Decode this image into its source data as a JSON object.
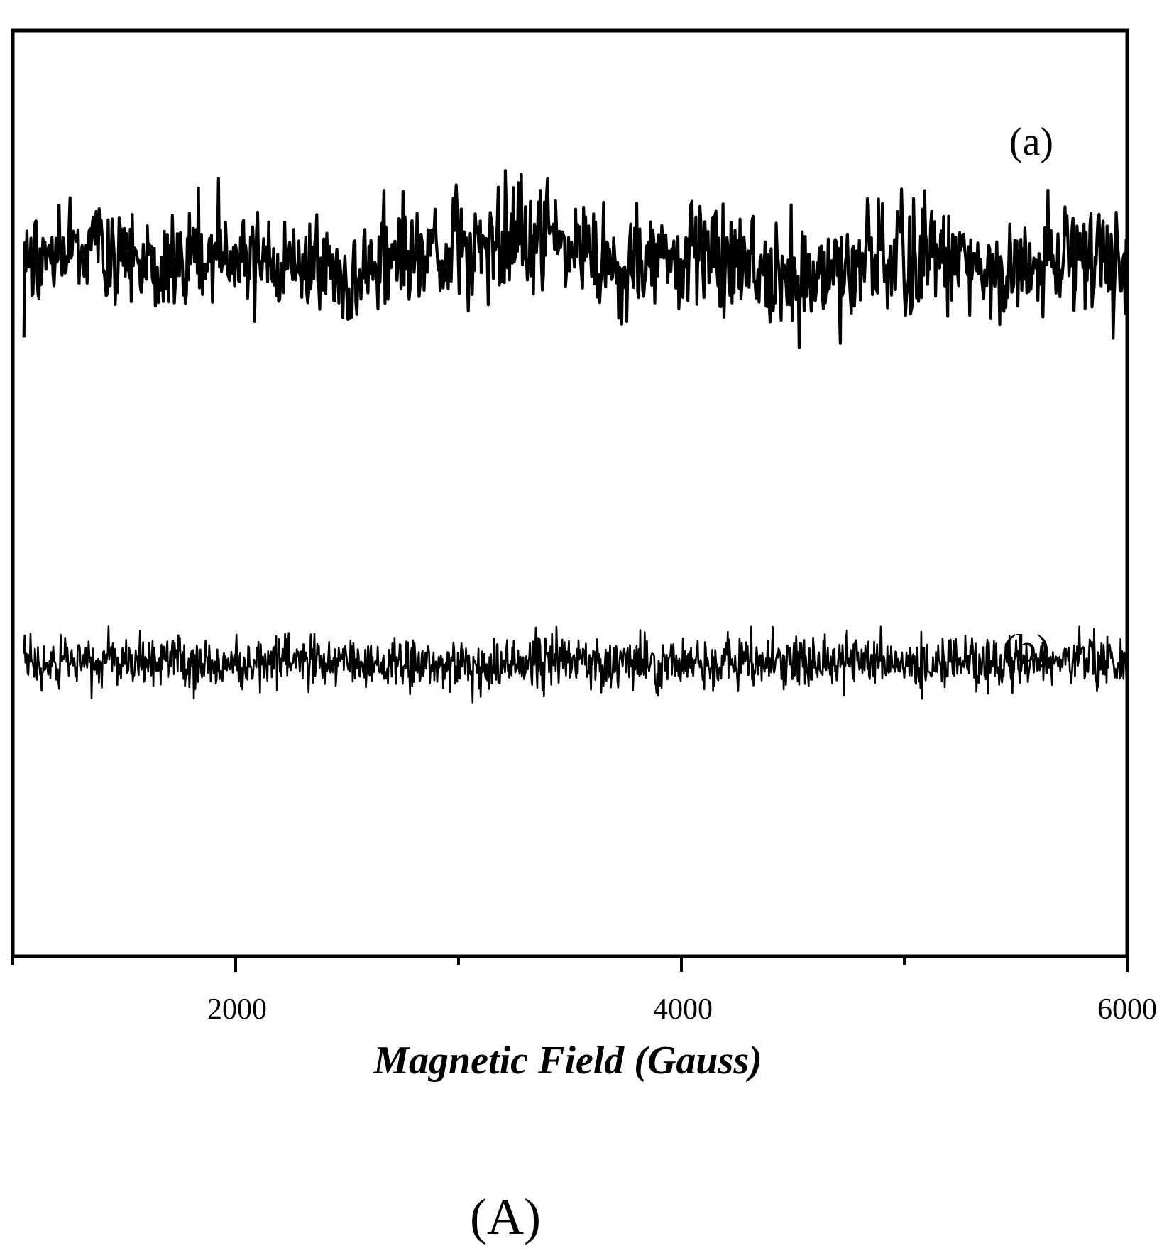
{
  "chart_data": {
    "type": "line",
    "xlabel": "Magnetic Field (Gauss)",
    "ylabel": "",
    "xlim": [
      1000,
      6000
    ],
    "xticks": [
      2000,
      4000,
      6000
    ],
    "xtick_labels": [
      "2000",
      "4000",
      "6000"
    ],
    "minor_xticks": [
      1000,
      3000,
      5000
    ],
    "grid": false,
    "legend": "none",
    "panel_label": "(A)",
    "series": [
      {
        "label": "(a)",
        "style": "noisy baseline, larger amplitude, upper trace",
        "noise": "large",
        "values": [
          {
            "x": 1050,
            "y": 0.0
          },
          {
            "x": 1300,
            "y": 0.1
          },
          {
            "x": 1600,
            "y": -0.05
          },
          {
            "x": 1900,
            "y": 0.05
          },
          {
            "x": 2200,
            "y": 0.0
          },
          {
            "x": 2500,
            "y": -0.1
          },
          {
            "x": 2800,
            "y": 0.05
          },
          {
            "x": 3100,
            "y": 0.1
          },
          {
            "x": 3400,
            "y": 0.2
          },
          {
            "x": 3600,
            "y": -0.05
          },
          {
            "x": 3900,
            "y": 0.0
          },
          {
            "x": 4200,
            "y": 0.05
          },
          {
            "x": 4500,
            "y": -0.1
          },
          {
            "x": 4800,
            "y": 0.0
          },
          {
            "x": 5100,
            "y": 0.05
          },
          {
            "x": 5400,
            "y": -0.05
          },
          {
            "x": 5700,
            "y": 0.0
          },
          {
            "x": 6000,
            "y": 0.0
          }
        ]
      },
      {
        "label": "(b)",
        "style": "noisy baseline, smaller amplitude, lower trace",
        "noise": "small",
        "values": [
          {
            "x": 1050,
            "y": 0.0
          },
          {
            "x": 1300,
            "y": 0.0
          },
          {
            "x": 1600,
            "y": 0.02
          },
          {
            "x": 1900,
            "y": 0.0
          },
          {
            "x": 2200,
            "y": 0.02
          },
          {
            "x": 2500,
            "y": 0.0
          },
          {
            "x": 2800,
            "y": 0.01
          },
          {
            "x": 3100,
            "y": -0.02
          },
          {
            "x": 3400,
            "y": 0.02
          },
          {
            "x": 3600,
            "y": 0.0
          },
          {
            "x": 3900,
            "y": -0.01
          },
          {
            "x": 4200,
            "y": 0.01
          },
          {
            "x": 4500,
            "y": 0.02
          },
          {
            "x": 4800,
            "y": 0.01
          },
          {
            "x": 5100,
            "y": 0.0
          },
          {
            "x": 5400,
            "y": 0.02
          },
          {
            "x": 5700,
            "y": 0.01
          },
          {
            "x": 6000,
            "y": 0.0
          }
        ]
      }
    ]
  },
  "colors": {
    "line": "#000000",
    "frame": "#000000",
    "background": "#ffffff"
  }
}
